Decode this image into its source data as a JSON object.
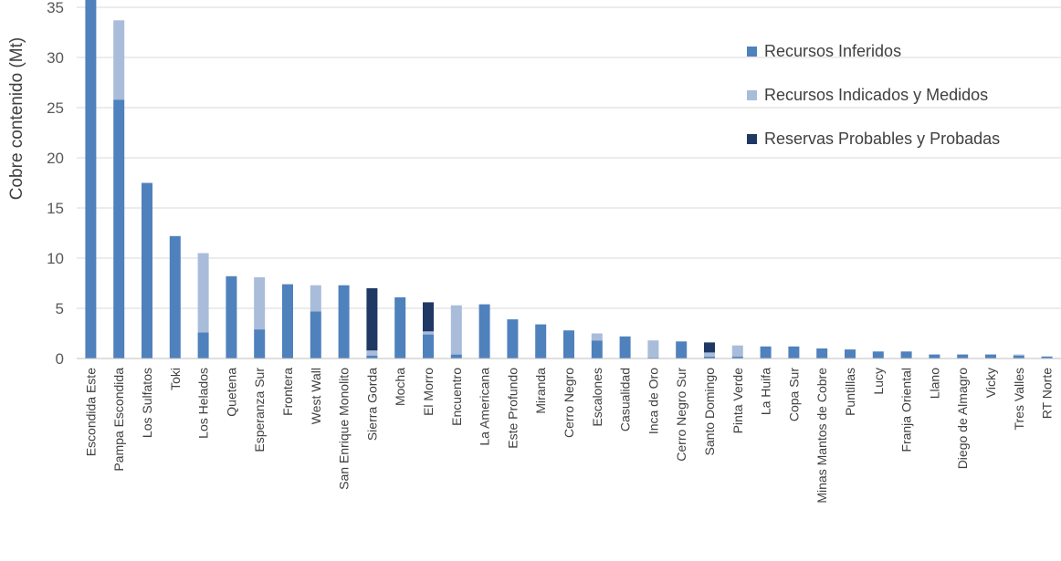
{
  "chart_data": {
    "type": "bar",
    "stacked": true,
    "ylabel": "Cobre contenido (Mt)",
    "ylim": [
      0,
      35
    ],
    "yticks": [
      0,
      5,
      10,
      15,
      20,
      25,
      30,
      35
    ],
    "grid": true,
    "legend_position": "top-right",
    "categories": [
      "Escondida Este",
      "Pampa Escondida",
      "Los Sulfatos",
      "Toki",
      "Los Helados",
      "Quetena",
      "Esperanza Sur",
      "Frontera",
      "West Wall",
      "San Enrique Monolito",
      "Sierra Gorda",
      "Mocha",
      "El Morro",
      "Encuentro",
      "La Americana",
      "Este Profundo",
      "Miranda",
      "Cerro Negro",
      "Escalones",
      "Casualidad",
      "Inca de Oro",
      "Cerro Negro Sur",
      "Santo Domingo",
      "Pinta Verde",
      "La Huifa",
      "Copa Sur",
      "Minas Mantos de Cobre",
      "Puntillas",
      "Lucy",
      "Franja Oriental",
      "Llano",
      "Diego de Almagro",
      "Vicky",
      "Tres Valles",
      "RT Norte"
    ],
    "series": [
      {
        "name": "Recursos Inferidos",
        "color": "#4f81bd",
        "values": [
          36.0,
          25.8,
          17.5,
          12.2,
          2.6,
          8.2,
          2.9,
          7.4,
          4.7,
          7.3,
          0.3,
          6.1,
          2.4,
          0.4,
          5.4,
          3.9,
          3.4,
          2.8,
          1.8,
          2.2,
          0.1,
          1.7,
          0.2,
          0.2,
          1.2,
          1.2,
          1.0,
          0.9,
          0.7,
          0.7,
          0.4,
          0.4,
          0.4,
          0.3,
          0.2
        ]
      },
      {
        "name": "Recursos Indicados y Medidos",
        "color": "#a9bcda",
        "values": [
          0,
          7.9,
          0,
          0,
          7.9,
          0,
          5.2,
          0,
          2.6,
          0,
          0.5,
          0,
          0.3,
          4.9,
          0,
          0,
          0,
          0,
          0.7,
          0,
          1.7,
          0,
          0.4,
          1.1,
          0,
          0,
          0,
          0,
          0,
          0,
          0,
          0,
          0,
          0.1,
          0
        ]
      },
      {
        "name": "Reservas Probables y Probadas",
        "color": "#1f3864",
        "values": [
          0,
          0,
          0,
          0,
          0,
          0,
          0,
          0,
          0,
          0,
          6.2,
          0,
          2.9,
          0,
          0,
          0,
          0,
          0,
          0,
          0,
          0,
          0,
          1.0,
          0,
          0,
          0,
          0,
          0,
          0,
          0,
          0,
          0,
          0,
          0,
          0
        ]
      }
    ]
  }
}
